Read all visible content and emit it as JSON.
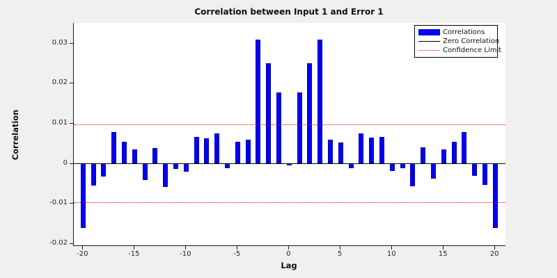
{
  "figure": {
    "title": "Correlation between Input 1 and Error 1",
    "xlabel": "Lag",
    "ylabel": "Correlation",
    "background_color": "#f0f0f0",
    "plot_background_color": "#ffffff"
  },
  "legend": {
    "items": [
      {
        "label": "Correlations",
        "swatch": "bar",
        "color": "#0202ee"
      },
      {
        "label": "Zero Correlation",
        "swatch": "line",
        "color": "#000000"
      },
      {
        "label": "Confidence Limit",
        "swatch": "dotted",
        "color": "#e00000"
      }
    ]
  },
  "chart_data": {
    "type": "bar",
    "title": "Correlation between Input 1 and Error 1",
    "xlabel": "Lag",
    "ylabel": "Correlation",
    "x": [
      -20,
      -19,
      -18,
      -17,
      -16,
      -15,
      -14,
      -13,
      -12,
      -11,
      -10,
      -9,
      -8,
      -7,
      -6,
      -5,
      -4,
      -3,
      -2,
      -1,
      0,
      1,
      2,
      3,
      4,
      5,
      6,
      7,
      8,
      9,
      10,
      11,
      12,
      13,
      14,
      15,
      16,
      17,
      18,
      19,
      20
    ],
    "values": [
      -0.0162,
      -0.0055,
      -0.0033,
      0.0077,
      0.0053,
      0.0035,
      -0.0042,
      0.0037,
      -0.006,
      -0.0014,
      -0.0021,
      0.0066,
      0.0062,
      0.0075,
      -0.0012,
      0.0053,
      0.0059,
      0.0308,
      0.025,
      0.0177,
      -0.0005,
      0.0177,
      0.025,
      0.0308,
      0.0058,
      0.0052,
      -0.0012,
      0.0075,
      0.0063,
      0.0066,
      -0.0019,
      -0.0012,
      -0.0058,
      0.004,
      -0.0039,
      0.0035,
      0.0054,
      0.0078,
      -0.0031,
      -0.0054,
      -0.0162
    ],
    "bar_color": "#0202ee",
    "bar_edge_color": "#0000b8",
    "zero_line_value": 0,
    "zero_line_color": "#000000",
    "confidence_limit": 0.0097,
    "confidence_color": "#e00000",
    "xlim": [
      -20.9,
      21.0
    ],
    "ylim": [
      -0.0205,
      0.035
    ],
    "x_ticks": [
      -20,
      -15,
      -10,
      -5,
      0,
      5,
      10,
      15,
      20
    ],
    "x_tick_labels": [
      "-20",
      "-15",
      "-10",
      "-5",
      "0",
      "5",
      "10",
      "15",
      "20"
    ],
    "y_ticks": [
      -0.02,
      -0.01,
      0,
      0.01,
      0.02,
      0.03
    ],
    "y_tick_labels": [
      "-0.02",
      "-0.01",
      "0",
      "0.01",
      "0.02",
      "0.03"
    ],
    "grid": false,
    "legend_position": "top-right"
  }
}
